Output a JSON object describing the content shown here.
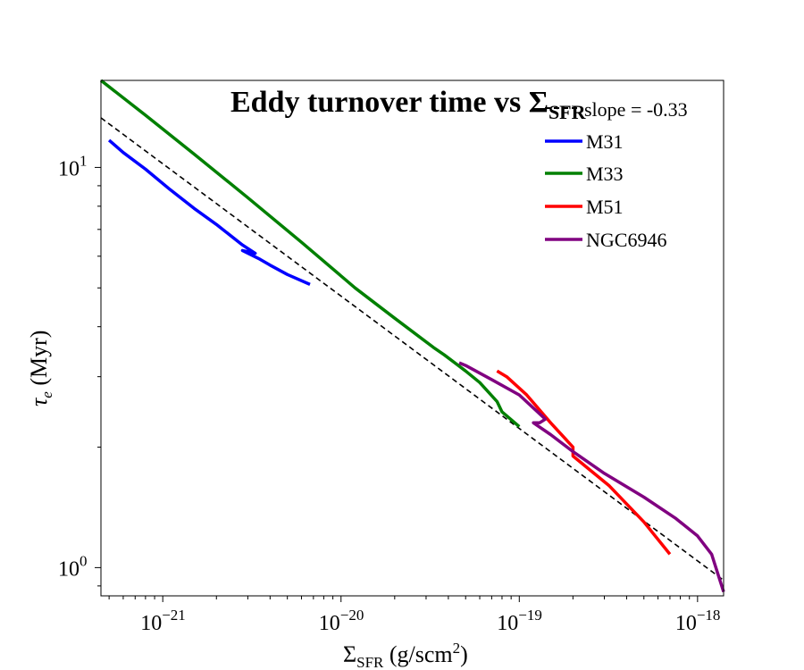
{
  "chart_data": {
    "type": "line",
    "title_main": "Eddy turnover time vs Σ",
    "title_sub": "SFR",
    "xlabel_main": "Σ",
    "xlabel_sub": "SFR",
    "xlabel_units": " (g/scm",
    "xlabel_sup": "2",
    "xlabel_close": ")",
    "ylabel_main": "τ",
    "ylabel_sub": "e",
    "ylabel_units": " (Myr)",
    "xscale": "log",
    "yscale": "log",
    "xlim": [
      4.5e-22,
      1.4e-18
    ],
    "ylim": [
      0.85,
      16.5
    ],
    "xticks": [
      {
        "value": 1e-21,
        "base": "10",
        "exp": "−21"
      },
      {
        "value": 1e-20,
        "base": "10",
        "exp": "−20"
      },
      {
        "value": 1e-19,
        "base": "10",
        "exp": "−19"
      },
      {
        "value": 1e-18,
        "base": "10",
        "exp": "−18"
      }
    ],
    "yticks": [
      {
        "value": 1,
        "base": "10",
        "exp": "0"
      },
      {
        "value": 10,
        "base": "10",
        "exp": "1"
      }
    ],
    "fit_line": {
      "label": "slope = -0.33",
      "color": "#000000",
      "x": [
        4.5e-22,
        1.4e-18
      ],
      "y": [
        13.3,
        0.93
      ]
    },
    "series": [
      {
        "name": "M31",
        "color": "#0000ff",
        "x": [
          5e-22,
          6e-22,
          8e-22,
          1.1e-21,
          1.5e-21,
          2e-21,
          2.8e-21,
          3.3e-21,
          2.8e-21,
          3.5e-21,
          4e-21,
          5e-21,
          6.7e-21
        ],
        "y": [
          11.7,
          10.9,
          9.9,
          8.8,
          7.9,
          7.2,
          6.4,
          6.1,
          6.2,
          5.9,
          5.7,
          5.4,
          5.1
        ]
      },
      {
        "name": "M33",
        "color": "#008000",
        "x": [
          4.5e-22,
          8e-22,
          1.5e-21,
          3e-21,
          6e-21,
          1.2e-20,
          2e-20,
          3.3e-20,
          3.8e-20,
          5e-20,
          6e-20,
          7.5e-20,
          8e-20,
          1e-19
        ],
        "y": [
          16.5,
          13.5,
          10.8,
          8.4,
          6.5,
          5.0,
          4.2,
          3.55,
          3.4,
          3.1,
          2.9,
          2.6,
          2.45,
          2.25
        ]
      },
      {
        "name": "M51",
        "color": "#ff0000",
        "x": [
          7.5e-20,
          8.5e-20,
          1.1e-19,
          1.5e-19,
          2e-19,
          2e-19,
          3.2e-19,
          5e-19,
          7e-19
        ],
        "y": [
          3.1,
          3.0,
          2.7,
          2.3,
          2.0,
          1.9,
          1.6,
          1.3,
          1.08
        ]
      },
      {
        "name": "NGC6946",
        "color": "#800080",
        "x": [
          4.6e-20,
          5e-20,
          7e-20,
          1e-19,
          1.4e-19,
          1.3e-19,
          1.2e-19,
          1.5e-19,
          2e-19,
          3e-19,
          5e-19,
          7.5e-19,
          1e-18,
          1.2e-18,
          1.4e-18
        ],
        "y": [
          3.25,
          3.2,
          2.95,
          2.7,
          2.35,
          2.3,
          2.3,
          2.15,
          1.95,
          1.72,
          1.5,
          1.33,
          1.2,
          1.08,
          0.87
        ]
      }
    ],
    "legend_placement": "upper-right",
    "grid": false
  }
}
